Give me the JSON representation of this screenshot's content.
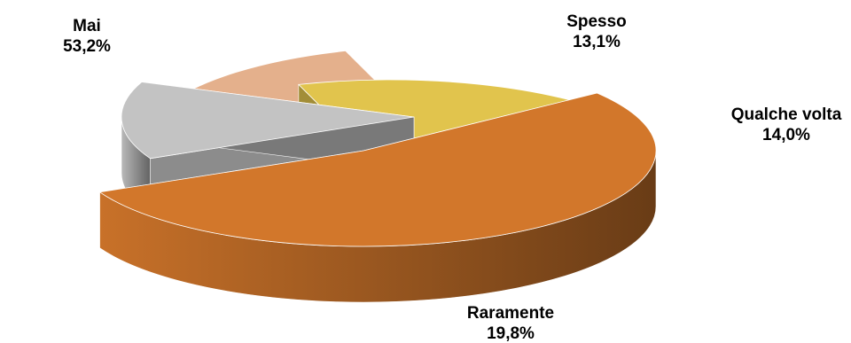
{
  "chart_data": {
    "type": "pie",
    "style": "3d-exploded",
    "title": "",
    "slices": [
      {
        "label": "Mai",
        "value": 53.2,
        "value_label": "53,2%",
        "color": "#d2772b"
      },
      {
        "label": "Spesso",
        "value": 13.1,
        "value_label": "13,1%",
        "color": "#c3c3c3"
      },
      {
        "label": "Qualche volta",
        "value": 14.0,
        "value_label": "14,0%",
        "color": "#e4b08c"
      },
      {
        "label": "Raramente",
        "value": 19.8,
        "value_label": "19,8%",
        "color": "#e1c44d"
      }
    ],
    "legend": "none"
  }
}
